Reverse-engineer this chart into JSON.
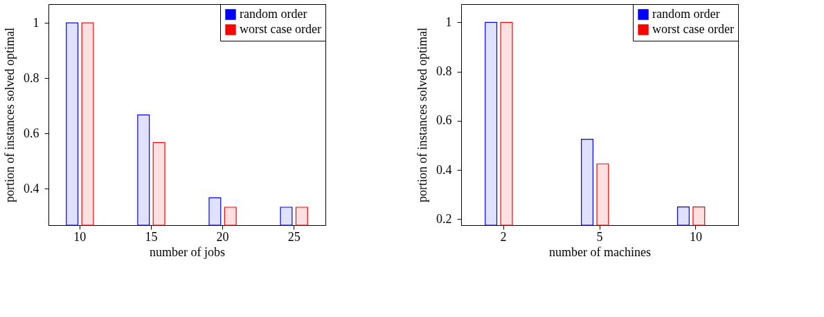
{
  "chart_data": [
    {
      "type": "bar",
      "xlabel": "number of jobs",
      "ylabel": "portion of instances solved optimal",
      "categories": [
        "10",
        "15",
        "20",
        "25"
      ],
      "series": [
        {
          "name": "random order",
          "color": "#0000ff",
          "values": [
            1,
            0.667,
            0.367,
            0.333
          ]
        },
        {
          "name": "worst case order",
          "color": "#ff0000",
          "values": [
            1,
            0.567,
            0.333,
            0.333
          ]
        }
      ],
      "ylim": [
        0.268,
        1.068
      ],
      "yticks": [
        0.4,
        0.6,
        0.8,
        1
      ],
      "grid": false,
      "legend": "top right"
    },
    {
      "type": "bar",
      "xlabel": "number of machines",
      "ylabel": "portion of instances solved optimal",
      "categories": [
        "2",
        "5",
        "10"
      ],
      "series": [
        {
          "name": "random order",
          "color": "#0000ff",
          "values": [
            1,
            0.525,
            0.25
          ]
        },
        {
          "name": "worst case order",
          "color": "#ff0000",
          "values": [
            1,
            0.425,
            0.25
          ]
        }
      ],
      "ylim": [
        0.176,
        1.074
      ],
      "yticks": [
        0.2,
        0.4,
        0.6,
        0.8,
        1
      ],
      "grid": false,
      "legend": "top right"
    }
  ]
}
